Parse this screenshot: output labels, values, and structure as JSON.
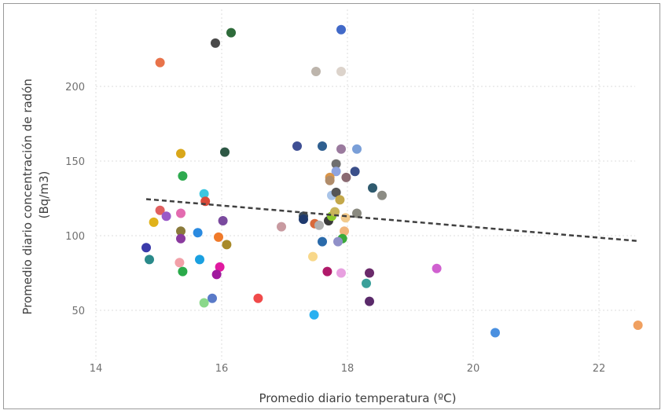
{
  "chart_data": {
    "type": "scatter",
    "title": "",
    "xlabel": "Promedio diario temperatura (ºC)",
    "ylabel_line1": "Promedio diario concentración de radón",
    "ylabel_line2": "(Bq/m3)",
    "xlim": [
      14,
      23
    ],
    "ylim": [
      30,
      245
    ],
    "x_ticks": [
      14,
      16,
      18,
      20,
      22
    ],
    "y_ticks": [
      50,
      100,
      150,
      200
    ],
    "grid": true,
    "legend": "none",
    "trendline": {
      "x": [
        14.8,
        22.6
      ],
      "y": [
        124.5,
        96.5
      ],
      "color": "#404040"
    },
    "points": [
      {
        "x": 15.02,
        "y": 216,
        "color": "#E8734A"
      },
      {
        "x": 15.9,
        "y": 229,
        "color": "#4A4A4A"
      },
      {
        "x": 16.15,
        "y": 236,
        "color": "#2E6B3A"
      },
      {
        "x": 17.9,
        "y": 238,
        "color": "#4169C8"
      },
      {
        "x": 17.5,
        "y": 210,
        "color": "#BDB5AC"
      },
      {
        "x": 17.9,
        "y": 210,
        "color": "#DCD3CB"
      },
      {
        "x": 15.35,
        "y": 155,
        "color": "#D9A71A"
      },
      {
        "x": 16.05,
        "y": 156,
        "color": "#2E5845"
      },
      {
        "x": 17.2,
        "y": 160,
        "color": "#3F4F94"
      },
      {
        "x": 17.6,
        "y": 160,
        "color": "#2F5F90"
      },
      {
        "x": 17.9,
        "y": 158,
        "color": "#9A7A9E"
      },
      {
        "x": 18.15,
        "y": 158,
        "color": "#7A9FD8"
      },
      {
        "x": 15.38,
        "y": 140,
        "color": "#2EAA4F"
      },
      {
        "x": 17.82,
        "y": 148,
        "color": "#6F6F6F"
      },
      {
        "x": 17.82,
        "y": 143,
        "color": "#8FA4E0"
      },
      {
        "x": 18.12,
        "y": 143,
        "color": "#3B4F8A"
      },
      {
        "x": 17.72,
        "y": 139,
        "color": "#D9954A"
      },
      {
        "x": 17.72,
        "y": 137,
        "color": "#B08C6A"
      },
      {
        "x": 17.98,
        "y": 139,
        "color": "#8A6A72"
      },
      {
        "x": 18.4,
        "y": 132,
        "color": "#2F5A6E"
      },
      {
        "x": 18.55,
        "y": 127,
        "color": "#8C8C84"
      },
      {
        "x": 17.75,
        "y": 127,
        "color": "#A9C4E8"
      },
      {
        "x": 17.82,
        "y": 129,
        "color": "#555555"
      },
      {
        "x": 17.88,
        "y": 124,
        "color": "#C4A84A"
      },
      {
        "x": 15.72,
        "y": 128,
        "color": "#3DC6E0"
      },
      {
        "x": 15.74,
        "y": 123,
        "color": "#D94A3A"
      },
      {
        "x": 15.02,
        "y": 117,
        "color": "#E06060"
      },
      {
        "x": 15.12,
        "y": 113,
        "color": "#9A5AC8"
      },
      {
        "x": 15.35,
        "y": 115,
        "color": "#E36BB0"
      },
      {
        "x": 16.02,
        "y": 110,
        "color": "#7A4A9E"
      },
      {
        "x": 14.92,
        "y": 109,
        "color": "#E0B21A"
      },
      {
        "x": 17.3,
        "y": 113,
        "color": "#3A4A5A"
      },
      {
        "x": 17.3,
        "y": 111,
        "color": "#1F3A6E"
      },
      {
        "x": 17.48,
        "y": 108,
        "color": "#D96A3A"
      },
      {
        "x": 17.55,
        "y": 107,
        "color": "#B0B0B0"
      },
      {
        "x": 17.7,
        "y": 110,
        "color": "#3A3A3A"
      },
      {
        "x": 17.75,
        "y": 113,
        "color": "#8ACB2A"
      },
      {
        "x": 17.8,
        "y": 116,
        "color": "#C8B45A"
      },
      {
        "x": 17.97,
        "y": 112,
        "color": "#F2C98A"
      },
      {
        "x": 18.15,
        "y": 115,
        "color": "#8A8A80"
      },
      {
        "x": 16.95,
        "y": 106,
        "color": "#C89AA0"
      },
      {
        "x": 15.35,
        "y": 103,
        "color": "#8A7A3A"
      },
      {
        "x": 15.62,
        "y": 102,
        "color": "#2A8AE0"
      },
      {
        "x": 15.95,
        "y": 99,
        "color": "#F07A2A"
      },
      {
        "x": 15.35,
        "y": 98,
        "color": "#8A3A9E"
      },
      {
        "x": 16.08,
        "y": 94,
        "color": "#A88A2A"
      },
      {
        "x": 17.95,
        "y": 103,
        "color": "#F0B47A"
      },
      {
        "x": 17.92,
        "y": 98,
        "color": "#3AAA3A"
      },
      {
        "x": 17.85,
        "y": 96,
        "color": "#9090C8"
      },
      {
        "x": 17.6,
        "y": 96,
        "color": "#2A6AAA"
      },
      {
        "x": 14.8,
        "y": 92,
        "color": "#3A3AAA"
      },
      {
        "x": 14.85,
        "y": 84,
        "color": "#2A8A8A"
      },
      {
        "x": 15.33,
        "y": 82,
        "color": "#F2A0A8"
      },
      {
        "x": 15.65,
        "y": 84,
        "color": "#1AA0E0"
      },
      {
        "x": 15.97,
        "y": 79,
        "color": "#E01AA0"
      },
      {
        "x": 15.38,
        "y": 76,
        "color": "#2AAA4A"
      },
      {
        "x": 15.92,
        "y": 74,
        "color": "#A01A9E"
      },
      {
        "x": 17.45,
        "y": 86,
        "color": "#F8D88A"
      },
      {
        "x": 17.68,
        "y": 76,
        "color": "#B01A6A"
      },
      {
        "x": 17.9,
        "y": 75,
        "color": "#E8A0E0"
      },
      {
        "x": 18.35,
        "y": 75,
        "color": "#6A2A6A"
      },
      {
        "x": 18.3,
        "y": 68,
        "color": "#3AA09A"
      },
      {
        "x": 19.42,
        "y": 78,
        "color": "#D060D0"
      },
      {
        "x": 16.58,
        "y": 58,
        "color": "#F04A4A"
      },
      {
        "x": 15.85,
        "y": 58,
        "color": "#5A7AC8"
      },
      {
        "x": 15.72,
        "y": 55,
        "color": "#8AD88A"
      },
      {
        "x": 18.35,
        "y": 56,
        "color": "#5A2A6A"
      },
      {
        "x": 17.47,
        "y": 47,
        "color": "#2AB0F0"
      },
      {
        "x": 20.35,
        "y": 35,
        "color": "#4A90E0"
      },
      {
        "x": 22.62,
        "y": 40,
        "color": "#F0A060"
      }
    ]
  }
}
